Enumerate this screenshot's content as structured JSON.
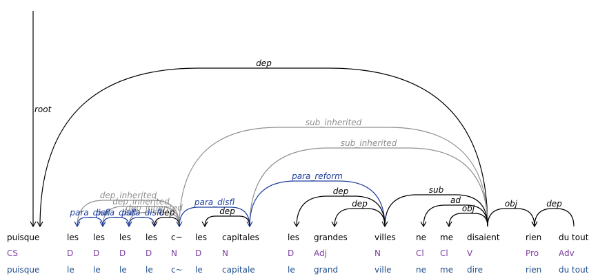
{
  "colors": {
    "black": "#000000",
    "gray": "#8f8f8f",
    "blue": "#1f3f9e",
    "pos": "#7b3fa0",
    "lemma": "#1f4e8c"
  },
  "tokens": [
    {
      "word": "puisque",
      "pos": "CS",
      "lemma": "puisque"
    },
    {
      "word": "les",
      "pos": "D",
      "lemma": "le"
    },
    {
      "word": "les",
      "pos": "D",
      "lemma": "le"
    },
    {
      "word": "les",
      "pos": "D",
      "lemma": "le"
    },
    {
      "word": "les",
      "pos": "D",
      "lemma": "le"
    },
    {
      "word": "c~",
      "pos": "N",
      "lemma": "c~"
    },
    {
      "word": "les",
      "pos": "D",
      "lemma": "le"
    },
    {
      "word": "capitales",
      "pos": "N",
      "lemma": "capitale"
    },
    {
      "word": "les",
      "pos": "D",
      "lemma": "le"
    },
    {
      "word": "grandes",
      "pos": "Adj",
      "lemma": "grand"
    },
    {
      "word": "villes",
      "pos": "N",
      "lemma": "ville"
    },
    {
      "word": "ne",
      "pos": "Cl",
      "lemma": "ne"
    },
    {
      "word": "me",
      "pos": "Cl",
      "lemma": "me"
    },
    {
      "word": "disaient",
      "pos": "V",
      "lemma": "dire"
    },
    {
      "word": "rien",
      "pos": "Pro",
      "lemma": "rien"
    },
    {
      "word": "du tout",
      "pos": "Adv",
      "lemma": "du tout"
    }
  ],
  "root": {
    "label": "root",
    "target": 0
  },
  "arcs": [
    {
      "from": 13,
      "to": 0,
      "label": "dep",
      "color": "black"
    },
    {
      "from": 13,
      "to": 5,
      "label": "sub_inherited",
      "color": "gray"
    },
    {
      "from": 13,
      "to": 7,
      "label": "sub_inherited",
      "color": "gray"
    },
    {
      "from": 10,
      "to": 7,
      "label": "para_reform",
      "color": "blue"
    },
    {
      "from": 10,
      "to": 8,
      "label": "dep",
      "color": "black"
    },
    {
      "from": 10,
      "to": 9,
      "label": "dep",
      "color": "black"
    },
    {
      "from": 13,
      "to": 10,
      "label": "sub",
      "color": "black"
    },
    {
      "from": 13,
      "to": 11,
      "label": "ad",
      "color": "black"
    },
    {
      "from": 13,
      "to": 12,
      "label": "obj",
      "color": "black"
    },
    {
      "from": 13,
      "to": 14,
      "label": "obj",
      "color": "black"
    },
    {
      "from": 15,
      "to": 14,
      "label": "dep",
      "color": "black"
    },
    {
      "from": 7,
      "to": 5,
      "label": "para_disfl",
      "color": "blue"
    },
    {
      "from": 7,
      "to": 6,
      "label": "dep",
      "color": "black"
    },
    {
      "from": 5,
      "to": 1,
      "label": "dep_inherited",
      "color": "gray"
    },
    {
      "from": 5,
      "to": 2,
      "label": "dep_inherited",
      "color": "gray"
    },
    {
      "from": 5,
      "to": 3,
      "label": "dep_inherited",
      "color": "gray"
    },
    {
      "from": 5,
      "to": 4,
      "label": "dep",
      "color": "black"
    },
    {
      "from": 2,
      "to": 1,
      "label": "para_disfl",
      "color": "blue"
    },
    {
      "from": 3,
      "to": 2,
      "label": "para_disfl",
      "color": "blue"
    },
    {
      "from": 4,
      "to": 3,
      "label": "para_disfl",
      "color": "blue"
    }
  ]
}
